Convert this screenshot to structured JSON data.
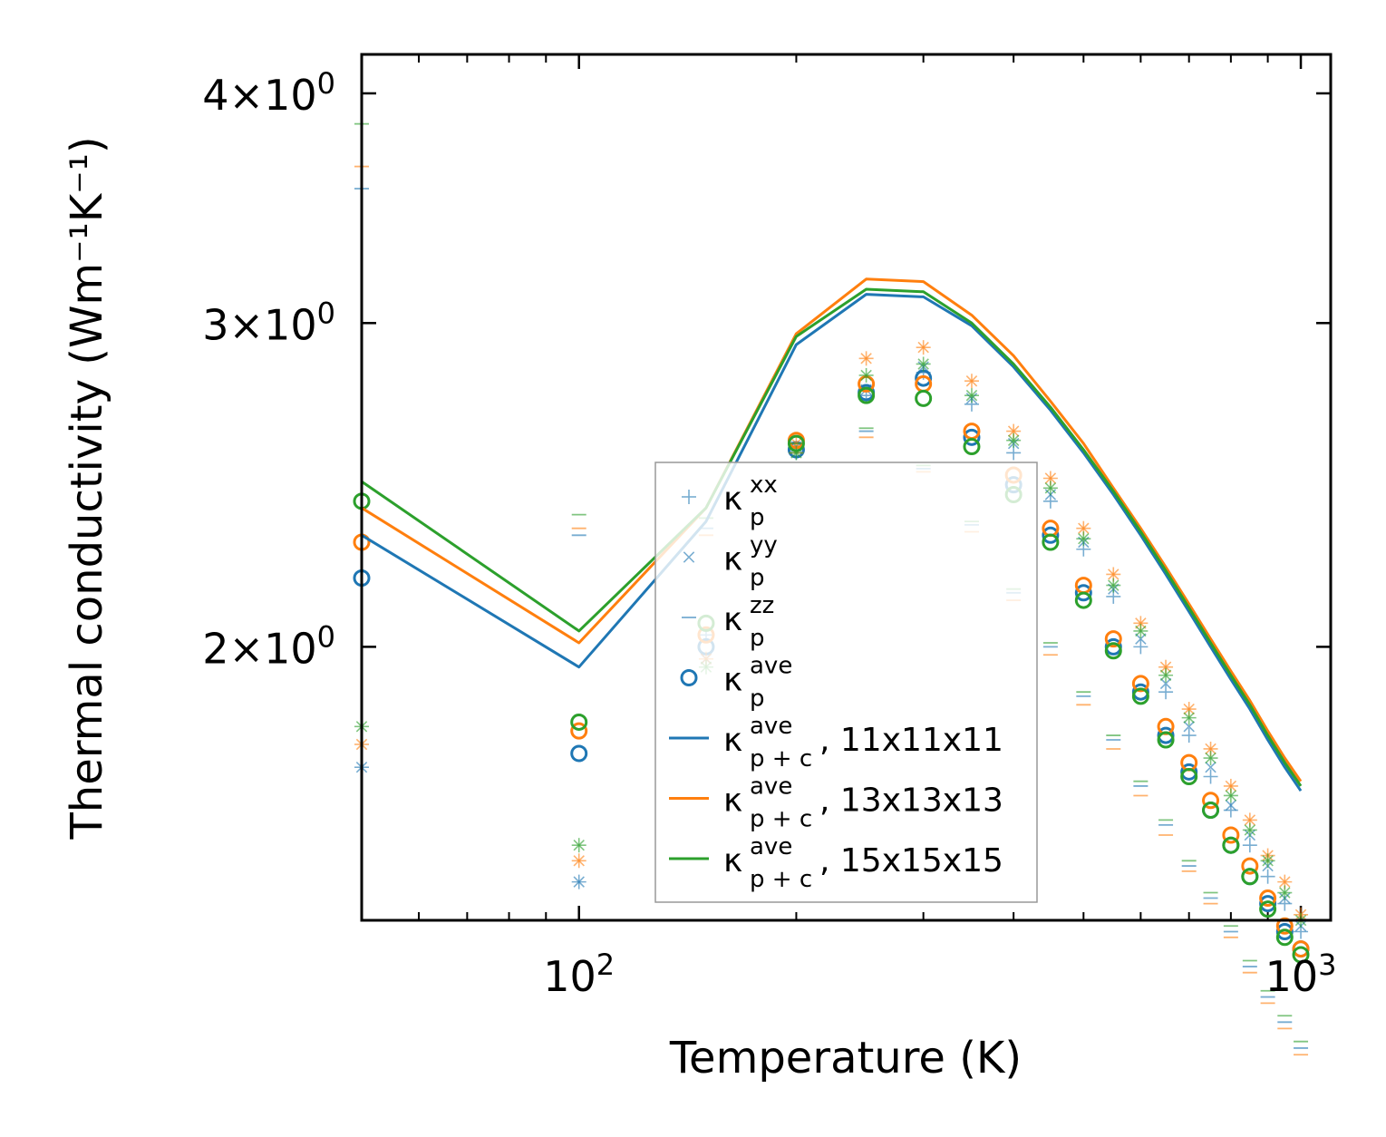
{
  "chart_data": {
    "type": "scatter",
    "xscale": "log",
    "yscale": "log",
    "xlabel": "Temperature (K)",
    "ylabel": "Thermal conductivity (Wm⁻¹K⁻¹)",
    "xlim": [
      50,
      1100
    ],
    "ylim": [
      1.42,
      4.2
    ],
    "x_ticks": [
      {
        "value": 100,
        "base": "10",
        "exp": "2"
      },
      {
        "value": 1000,
        "base": "10",
        "exp": "3"
      }
    ],
    "y_ticks": [
      {
        "value": 2,
        "mant": "2",
        "times": "×",
        "base": "10",
        "exp": "0"
      },
      {
        "value": 3,
        "mant": "3",
        "times": "×",
        "base": "10",
        "exp": "0"
      },
      {
        "value": 4,
        "mant": "4",
        "times": "×",
        "base": "10",
        "exp": "0"
      }
    ],
    "x": [
      50,
      100,
      150,
      200,
      250,
      300,
      350,
      400,
      450,
      500,
      550,
      600,
      650,
      700,
      750,
      800,
      850,
      900,
      950,
      1000
    ],
    "colors": {
      "blue": "#1f77b4",
      "orange": "#ff7f0e",
      "green": "#2ca02c"
    },
    "point_groups": [
      {
        "color_key": "blue",
        "kxx": [
          1.72,
          1.49,
          2.03,
          2.55,
          2.74,
          2.82,
          2.71,
          2.55,
          2.4,
          2.26,
          2.13,
          2.0,
          1.89,
          1.79,
          1.7,
          1.63,
          1.56,
          1.5,
          1.45,
          1.4
        ],
        "kyy": [
          1.72,
          1.49,
          1.97,
          2.57,
          2.76,
          2.84,
          2.73,
          2.58,
          2.42,
          2.28,
          2.15,
          2.02,
          1.91,
          1.81,
          1.72,
          1.64,
          1.58,
          1.52,
          1.46,
          1.41
        ],
        "kzz": [
          3.55,
          2.3,
          2.32,
          2.57,
          2.62,
          2.5,
          2.33,
          2.14,
          2.0,
          1.88,
          1.78,
          1.68,
          1.6,
          1.52,
          1.46,
          1.4,
          1.34,
          1.29,
          1.25,
          1.21
        ],
        "kave": [
          2.18,
          1.75,
          2.0,
          2.56,
          2.75,
          2.8,
          2.6,
          2.45,
          2.3,
          2.14,
          2.0,
          1.89,
          1.79,
          1.71,
          1.63,
          1.56,
          1.5,
          1.45,
          1.4,
          1.37
        ]
      },
      {
        "color_key": "orange",
        "kxx": [
          1.77,
          1.53,
          1.97,
          2.58,
          2.87,
          2.91,
          2.79,
          2.62,
          2.47,
          2.32,
          2.19,
          2.06,
          1.95,
          1.85,
          1.76,
          1.68,
          1.61,
          1.54,
          1.49,
          1.43
        ],
        "kyy": [
          1.77,
          1.53,
          1.97,
          2.58,
          2.87,
          2.91,
          2.79,
          2.62,
          2.47,
          2.32,
          2.19,
          2.06,
          1.95,
          1.85,
          1.76,
          1.68,
          1.61,
          1.54,
          1.49,
          1.43
        ],
        "kzz": [
          3.65,
          2.32,
          2.3,
          2.55,
          2.6,
          2.49,
          2.31,
          2.12,
          1.98,
          1.86,
          1.76,
          1.66,
          1.58,
          1.51,
          1.45,
          1.39,
          1.33,
          1.28,
          1.24,
          1.2
        ],
        "kave": [
          2.28,
          1.8,
          2.03,
          2.59,
          2.78,
          2.78,
          2.62,
          2.48,
          2.32,
          2.16,
          2.02,
          1.91,
          1.81,
          1.73,
          1.65,
          1.58,
          1.52,
          1.46,
          1.41,
          1.37
        ]
      },
      {
        "color_key": "green",
        "kxx": [
          1.81,
          1.56,
          1.95,
          2.55,
          2.81,
          2.85,
          2.74,
          2.59,
          2.44,
          2.29,
          2.16,
          2.04,
          1.93,
          1.83,
          1.74,
          1.66,
          1.59,
          1.53,
          1.47,
          1.42
        ],
        "kyy": [
          1.81,
          1.56,
          1.95,
          2.55,
          2.81,
          2.85,
          2.74,
          2.59,
          2.44,
          2.29,
          2.16,
          2.04,
          1.93,
          1.83,
          1.74,
          1.66,
          1.59,
          1.53,
          1.47,
          1.42
        ],
        "kzz": [
          3.85,
          2.36,
          2.35,
          2.58,
          2.63,
          2.51,
          2.34,
          2.15,
          2.01,
          1.89,
          1.79,
          1.69,
          1.61,
          1.53,
          1.47,
          1.41,
          1.35,
          1.3,
          1.26,
          1.22
        ],
        "kave": [
          2.4,
          1.82,
          2.06,
          2.58,
          2.74,
          2.73,
          2.57,
          2.42,
          2.28,
          2.12,
          1.99,
          1.88,
          1.78,
          1.7,
          1.63,
          1.56,
          1.5,
          1.44,
          1.39,
          1.36
        ]
      }
    ],
    "series": [
      {
        "name": "11x11x11",
        "color_key": "blue",
        "values": [
          2.3,
          1.95,
          2.34,
          2.92,
          3.11,
          3.1,
          2.99,
          2.84,
          2.69,
          2.55,
          2.42,
          2.3,
          2.19,
          2.09,
          2.0,
          1.92,
          1.85,
          1.78,
          1.72,
          1.67
        ]
      },
      {
        "name": "13x13x13",
        "color_key": "orange",
        "values": [
          2.38,
          2.01,
          2.38,
          2.96,
          3.17,
          3.16,
          3.03,
          2.88,
          2.72,
          2.58,
          2.44,
          2.32,
          2.21,
          2.11,
          2.02,
          1.94,
          1.87,
          1.8,
          1.74,
          1.69
        ]
      },
      {
        "name": "15x15x15",
        "color_key": "green",
        "values": [
          2.46,
          2.04,
          2.38,
          2.95,
          3.13,
          3.12,
          3.0,
          2.85,
          2.7,
          2.56,
          2.43,
          2.31,
          2.2,
          2.1,
          2.01,
          1.93,
          1.86,
          1.79,
          1.73,
          1.68
        ]
      }
    ],
    "legend": {
      "position": "center",
      "entries": [
        {
          "kind": "plus",
          "color_key": "blue",
          "base": "κ",
          "sup": "xx",
          "sub": "p",
          "suffix": ""
        },
        {
          "kind": "cross",
          "color_key": "blue",
          "base": "κ",
          "sup": "yy",
          "sub": "p",
          "suffix": ""
        },
        {
          "kind": "dash",
          "color_key": "blue",
          "base": "κ",
          "sup": "zz",
          "sub": "p",
          "suffix": ""
        },
        {
          "kind": "circle",
          "color_key": "blue",
          "base": "κ",
          "sup": "ave",
          "sub": "p",
          "suffix": ""
        },
        {
          "kind": "line",
          "color_key": "blue",
          "base": "κ",
          "sup": "ave",
          "sub": "p + c",
          "suffix": ", 11x11x11"
        },
        {
          "kind": "line",
          "color_key": "orange",
          "base": "κ",
          "sup": "ave",
          "sub": "p + c",
          "suffix": ", 13x13x13"
        },
        {
          "kind": "line",
          "color_key": "green",
          "base": "κ",
          "sup": "ave",
          "sub": "p + c",
          "suffix": ", 15x15x15"
        }
      ]
    }
  }
}
